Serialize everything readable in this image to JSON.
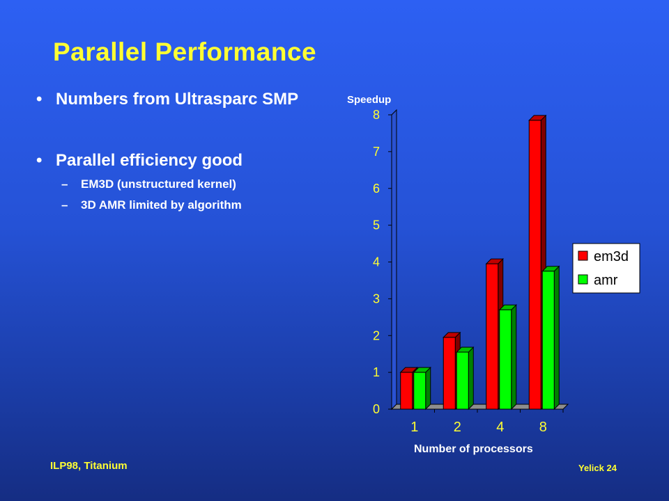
{
  "slide": {
    "title": "Parallel Performance",
    "bullets": [
      {
        "text": "Numbers from Ultrasparc SMP",
        "subs": []
      },
      {
        "text": "Parallel efficiency good",
        "subs": [
          "EM3D (unstructured kernel)",
          "3D AMR limited by algorithm"
        ]
      }
    ],
    "bullet_glyph": "•",
    "sub_glyph": "–",
    "footer_left": "ILP98, Titanium",
    "footer_right": "Yelick 24",
    "colors": {
      "background": "#2552d6",
      "title": "#ffff33",
      "text": "#ffffff"
    }
  },
  "chart_data": {
    "type": "bar",
    "style": "3d",
    "categories": [
      "1",
      "2",
      "4",
      "8"
    ],
    "series": [
      {
        "name": "em3d",
        "values": [
          1.0,
          1.95,
          3.95,
          7.85
        ],
        "color": "#ff0000"
      },
      {
        "name": "amr",
        "values": [
          1.0,
          1.55,
          2.7,
          3.75
        ],
        "color": "#00ff00"
      }
    ],
    "title": "",
    "xlabel": "Number of processors",
    "ylabel": "Speedup",
    "ylim": [
      0,
      8
    ],
    "yticks": [
      "0",
      "1",
      "2",
      "3",
      "4",
      "5",
      "6",
      "7",
      "8"
    ],
    "grid": false,
    "legend": "right"
  }
}
